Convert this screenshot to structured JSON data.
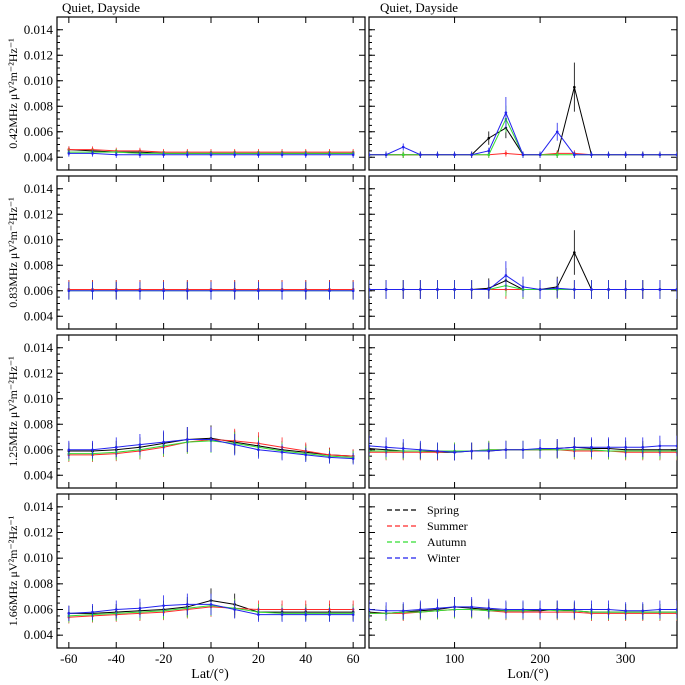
{
  "chart_data": {
    "type": "line",
    "panel_titles": [
      "Quiet, Dayside",
      "Quiet, Dayside"
    ],
    "xlabels": [
      "Lat/(°)",
      "Lon/(°)"
    ],
    "ylabel_prefixes": [
      "0.42MHz",
      "0.83MHz",
      "1.25MHz",
      "1.66MHz"
    ],
    "ylabel_unit": "μV²m⁻²Hz⁻¹",
    "ylim": [
      0.003,
      0.015
    ],
    "yticks": [
      0.004,
      0.006,
      0.008,
      0.01,
      0.012,
      0.014
    ],
    "ytick_labels": [
      "0.004",
      "0.006",
      "0.008",
      "0.010",
      "0.012",
      "0.014"
    ],
    "lat_xlim": [
      -65,
      65
    ],
    "lat_xticks": [
      -60,
      -40,
      -20,
      0,
      20,
      40,
      60
    ],
    "lat_xtick_labels": [
      "-60",
      "-40",
      "-20",
      "0",
      "20",
      "40",
      "60"
    ],
    "lon_xlim": [
      0,
      360
    ],
    "lon_xticks": [
      100,
      200,
      300
    ],
    "lon_xtick_labels": [
      "100",
      "200",
      "300"
    ],
    "legend": {
      "position": "top-left of bottom-right panel",
      "entries": [
        "Spring",
        "Summer",
        "Autumn",
        "Winter"
      ]
    },
    "series_colors": {
      "Spring": "#000000",
      "Summer": "#ff2a2a",
      "Autumn": "#33dd33",
      "Winter": "#2222ee"
    },
    "lat_x": [
      -60,
      -50,
      -40,
      -30,
      -20,
      -10,
      0,
      10,
      20,
      30,
      40,
      50,
      60
    ],
    "lon_x": [
      0,
      20,
      40,
      60,
      80,
      100,
      120,
      140,
      160,
      180,
      200,
      220,
      240,
      260,
      280,
      300,
      320,
      340,
      360
    ],
    "panels": {
      "lat_042": {
        "Spring": [
          0.0046,
          0.0045,
          0.0044,
          0.0044,
          0.0043,
          0.0043,
          0.0043,
          0.0043,
          0.0043,
          0.0043,
          0.0043,
          0.0043,
          0.0043
        ],
        "Summer": [
          0.0046,
          0.0046,
          0.0045,
          0.0045,
          0.0044,
          0.0044,
          0.0044,
          0.0044,
          0.0044,
          0.0044,
          0.0044,
          0.0044,
          0.0044
        ],
        "Autumn": [
          0.0044,
          0.0044,
          0.0044,
          0.0043,
          0.0043,
          0.0043,
          0.0043,
          0.0043,
          0.0043,
          0.0043,
          0.0043,
          0.0043,
          0.0043
        ],
        "Winter": [
          0.0043,
          0.0043,
          0.0042,
          0.0042,
          0.0042,
          0.0042,
          0.0042,
          0.0042,
          0.0042,
          0.0042,
          0.0042,
          0.0042,
          0.0042
        ]
      },
      "lon_042": {
        "Spring": [
          0.0042,
          0.0042,
          0.0042,
          0.0042,
          0.0042,
          0.0042,
          0.0042,
          0.0055,
          0.0063,
          0.0042,
          0.0042,
          0.0042,
          0.0095,
          0.0042,
          0.0042,
          0.0042,
          0.0042,
          0.0042,
          0.0042
        ],
        "Summer": [
          0.0042,
          0.0042,
          0.0042,
          0.0042,
          0.0042,
          0.0042,
          0.0042,
          0.0042,
          0.0043,
          0.0042,
          0.0042,
          0.0043,
          0.0043,
          0.0042,
          0.0042,
          0.0042,
          0.0042,
          0.0042,
          0.0042
        ],
        "Autumn": [
          0.0042,
          0.0042,
          0.0042,
          0.0042,
          0.0042,
          0.0042,
          0.0042,
          0.0042,
          0.007,
          0.0042,
          0.0042,
          0.0042,
          0.0042,
          0.0042,
          0.0042,
          0.0042,
          0.0042,
          0.0042,
          0.0042
        ],
        "Winter": [
          0.0042,
          0.0042,
          0.0048,
          0.0042,
          0.0042,
          0.0042,
          0.0042,
          0.0045,
          0.0075,
          0.0042,
          0.0042,
          0.006,
          0.0042,
          0.0042,
          0.0042,
          0.0042,
          0.0042,
          0.0042,
          0.0042
        ]
      },
      "lat_083": {
        "Spring": [
          0.0061,
          0.0061,
          0.0061,
          0.0061,
          0.0061,
          0.0061,
          0.0061,
          0.0061,
          0.0061,
          0.0061,
          0.0061,
          0.0061,
          0.0061
        ],
        "Summer": [
          0.0061,
          0.0061,
          0.0061,
          0.0061,
          0.0061,
          0.0061,
          0.0061,
          0.0061,
          0.0061,
          0.0061,
          0.0061,
          0.0061,
          0.0061
        ],
        "Autumn": [
          0.006,
          0.006,
          0.006,
          0.006,
          0.006,
          0.006,
          0.006,
          0.006,
          0.006,
          0.006,
          0.006,
          0.006,
          0.006
        ],
        "Winter": [
          0.006,
          0.006,
          0.006,
          0.006,
          0.006,
          0.006,
          0.006,
          0.006,
          0.006,
          0.006,
          0.006,
          0.006,
          0.006
        ]
      },
      "lon_083": {
        "Spring": [
          0.0061,
          0.0061,
          0.0061,
          0.0061,
          0.0061,
          0.0061,
          0.0061,
          0.0062,
          0.0068,
          0.0061,
          0.0061,
          0.0063,
          0.009,
          0.0061,
          0.0061,
          0.0061,
          0.0061,
          0.0061,
          0.0061
        ],
        "Summer": [
          0.0061,
          0.0061,
          0.0061,
          0.0061,
          0.0061,
          0.0061,
          0.0061,
          0.0061,
          0.0061,
          0.0061,
          0.0061,
          0.0061,
          0.0061,
          0.0061,
          0.0061,
          0.0061,
          0.0061,
          0.0061,
          0.0061
        ],
        "Autumn": [
          0.0061,
          0.0061,
          0.0061,
          0.0061,
          0.0061,
          0.0061,
          0.0061,
          0.0061,
          0.0064,
          0.0061,
          0.0061,
          0.0061,
          0.0061,
          0.0061,
          0.0061,
          0.0061,
          0.0061,
          0.0061,
          0.0061
        ],
        "Winter": [
          0.0061,
          0.0061,
          0.0061,
          0.0061,
          0.0061,
          0.0061,
          0.0061,
          0.0061,
          0.0072,
          0.0063,
          0.0061,
          0.0062,
          0.0061,
          0.0061,
          0.0061,
          0.0061,
          0.0061,
          0.0061,
          0.0061
        ]
      },
      "lat_125": {
        "Spring": [
          0.0059,
          0.0059,
          0.006,
          0.0062,
          0.0065,
          0.0068,
          0.0069,
          0.0066,
          0.0063,
          0.006,
          0.0058,
          0.0056,
          0.0055
        ],
        "Summer": [
          0.0056,
          0.0056,
          0.0057,
          0.0059,
          0.0062,
          0.0066,
          0.0068,
          0.0067,
          0.0065,
          0.0062,
          0.0059,
          0.0056,
          0.0055
        ],
        "Autumn": [
          0.0057,
          0.0057,
          0.0058,
          0.006,
          0.0063,
          0.0066,
          0.0067,
          0.0065,
          0.0062,
          0.0059,
          0.0057,
          0.0055,
          0.0054
        ],
        "Winter": [
          0.006,
          0.006,
          0.0062,
          0.0064,
          0.0066,
          0.0068,
          0.0068,
          0.0064,
          0.006,
          0.0058,
          0.0056,
          0.0054,
          0.0053
        ]
      },
      "lon_125": {
        "Spring": [
          0.0061,
          0.006,
          0.0059,
          0.0059,
          0.0058,
          0.0058,
          0.0059,
          0.0059,
          0.006,
          0.006,
          0.006,
          0.0061,
          0.0062,
          0.0061,
          0.0061,
          0.006,
          0.006,
          0.006,
          0.006
        ],
        "Summer": [
          0.0058,
          0.0058,
          0.0058,
          0.0058,
          0.0058,
          0.0059,
          0.0059,
          0.006,
          0.006,
          0.006,
          0.006,
          0.006,
          0.0059,
          0.0059,
          0.0059,
          0.0058,
          0.0058,
          0.0058,
          0.0058
        ],
        "Autumn": [
          0.0059,
          0.0059,
          0.0059,
          0.0059,
          0.0059,
          0.0059,
          0.0059,
          0.006,
          0.006,
          0.006,
          0.006,
          0.006,
          0.006,
          0.006,
          0.0059,
          0.0059,
          0.0059,
          0.0059,
          0.0059
        ],
        "Winter": [
          0.0063,
          0.0062,
          0.0061,
          0.006,
          0.0059,
          0.0058,
          0.0059,
          0.0059,
          0.006,
          0.006,
          0.0061,
          0.0061,
          0.0062,
          0.0062,
          0.0062,
          0.0062,
          0.0062,
          0.0063,
          0.0063
        ]
      },
      "lat_166": {
        "Spring": [
          0.0057,
          0.0057,
          0.0058,
          0.0059,
          0.006,
          0.0062,
          0.0067,
          0.0064,
          0.0058,
          0.0058,
          0.0058,
          0.0058,
          0.0058
        ],
        "Summer": [
          0.0054,
          0.0055,
          0.0056,
          0.0057,
          0.0058,
          0.006,
          0.0062,
          0.0061,
          0.006,
          0.006,
          0.006,
          0.006,
          0.006
        ],
        "Autumn": [
          0.0055,
          0.0056,
          0.0057,
          0.0058,
          0.0059,
          0.0061,
          0.0063,
          0.0061,
          0.0058,
          0.0057,
          0.0057,
          0.0057,
          0.0057
        ],
        "Winter": [
          0.0057,
          0.0058,
          0.006,
          0.0061,
          0.0063,
          0.0064,
          0.0064,
          0.006,
          0.0056,
          0.0056,
          0.0056,
          0.0056,
          0.0056
        ]
      },
      "lon_166": {
        "Spring": [
          0.0058,
          0.0057,
          0.0058,
          0.0059,
          0.006,
          0.0062,
          0.0061,
          0.006,
          0.0059,
          0.0059,
          0.0059,
          0.006,
          0.0059,
          0.0058,
          0.0058,
          0.0058,
          0.0058,
          0.0058,
          0.0058
        ],
        "Summer": [
          0.0057,
          0.0057,
          0.0057,
          0.0058,
          0.0059,
          0.006,
          0.006,
          0.0059,
          0.0058,
          0.0058,
          0.0058,
          0.0058,
          0.0058,
          0.0057,
          0.0057,
          0.0057,
          0.0057,
          0.0057,
          0.0057
        ],
        "Autumn": [
          0.0057,
          0.0057,
          0.0058,
          0.0058,
          0.0059,
          0.006,
          0.006,
          0.0059,
          0.0059,
          0.0059,
          0.006,
          0.0059,
          0.0059,
          0.0058,
          0.0058,
          0.0058,
          0.0058,
          0.0058,
          0.0058
        ],
        "Winter": [
          0.006,
          0.0059,
          0.0059,
          0.006,
          0.0061,
          0.0062,
          0.0062,
          0.0061,
          0.006,
          0.006,
          0.006,
          0.006,
          0.006,
          0.006,
          0.006,
          0.0059,
          0.0059,
          0.006,
          0.006
        ]
      }
    }
  }
}
